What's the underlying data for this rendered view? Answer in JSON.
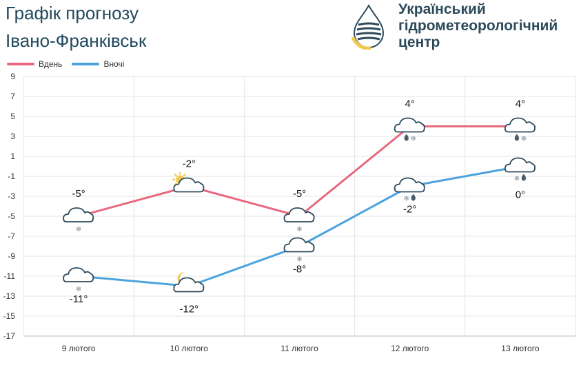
{
  "header": {
    "title": "Графік прогнозу",
    "city": "Івано-Франківськ"
  },
  "logo": {
    "lines": [
      "Український",
      "гідрометеорологічний",
      "центр"
    ]
  },
  "colors": {
    "day": "#e8687e",
    "night": "#4aa3dd",
    "grid": "#e4e4e4",
    "text": "#22495e",
    "cloud": "#2d4a5b",
    "sun": "#f2c94c"
  },
  "chart_data": {
    "type": "line",
    "categories": [
      "9 лютого",
      "10 лютого",
      "11 лютого",
      "12 лютого",
      "13 лютого"
    ],
    "ylim": [
      -17,
      9
    ],
    "yticks": [
      9,
      7,
      5,
      3,
      1,
      -1,
      -3,
      -5,
      -7,
      -9,
      -11,
      -13,
      -15,
      -17
    ],
    "grid": true,
    "legend": "top-left",
    "series": [
      {
        "name": "Вдень",
        "values": [
          -5,
          -2,
          -5,
          4,
          4
        ],
        "labels": [
          "-5°",
          "-2°",
          "-5°",
          "4°",
          "4°"
        ],
        "icons": [
          "cloud-snow",
          "sun-cloud",
          "cloud-snow",
          "cloud-rain-snow",
          "cloud-rain-snow"
        ]
      },
      {
        "name": "Вночі",
        "values": [
          -11,
          -12,
          -8,
          -2,
          0
        ],
        "labels": [
          "-11°",
          "-12°",
          "-8°",
          "-2°",
          "0°"
        ],
        "icons": [
          "cloud-snow",
          "moon-cloud",
          "cloud-snow",
          "cloud-snow-rain",
          "cloud-snow-rain"
        ]
      }
    ]
  }
}
